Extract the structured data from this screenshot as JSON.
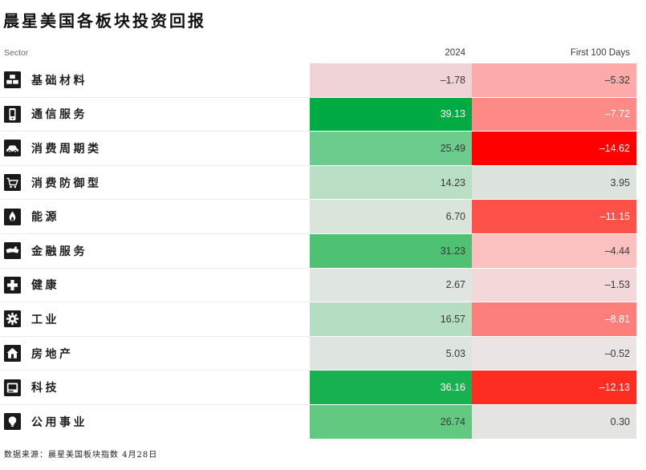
{
  "page": {
    "title": "晨星美国各板块投资回报",
    "source_note": "数据来源：晨星美国板块指数  4月28日"
  },
  "table_header": {
    "sector": "Sector",
    "col_2024": "2024",
    "col_first_100_days": "First 100 Days"
  },
  "colors": {
    "positive_strong_green": "#00ab44",
    "negative_strong_red": "#fe0000",
    "text_dark": "#3a3a3a",
    "text_light": "#ffffff",
    "row_divider": "#ededed"
  },
  "chart_data": {
    "type": "heatmap",
    "title": "晨星美国各板块投资回报",
    "columns": [
      "2024",
      "First 100 Days"
    ],
    "source": "数据来源：晨星美国板块指数  4月28日",
    "rows": [
      {
        "sector": "基础材料",
        "icon": "bricks-icon",
        "values": {
          "2024": -1.78,
          "first_100_days": -5.32
        },
        "cells": [
          {
            "display": "–1.78",
            "bg": "#f0d3d6",
            "fg": "#3a3a3a"
          },
          {
            "display": "–5.32",
            "bg": "#fcabaa",
            "fg": "#3a3a3a"
          }
        ]
      },
      {
        "sector": "通信服务",
        "icon": "mobile-phone-icon",
        "values": {
          "2024": 39.13,
          "first_100_days": -7.72
        },
        "cells": [
          {
            "display": "39.13",
            "bg": "#00ab44",
            "fg": "#ffffff"
          },
          {
            "display": "–7.72",
            "bg": "#fd8a86",
            "fg": "#ffffff"
          }
        ]
      },
      {
        "sector": "消费周期类",
        "icon": "car-icon",
        "values": {
          "2024": 25.49,
          "first_100_days": -14.62
        },
        "cells": [
          {
            "display": "25.49",
            "bg": "#6bcc8d",
            "fg": "#3a3a3a"
          },
          {
            "display": "–14.62",
            "bg": "#fe0000",
            "fg": "#ffffff"
          }
        ]
      },
      {
        "sector": "消费防御型",
        "icon": "shopping-cart-icon",
        "values": {
          "2024": 14.23,
          "first_100_days": 3.95
        },
        "cells": [
          {
            "display": "14.23",
            "bg": "#b9dfc4",
            "fg": "#3a3a3a"
          },
          {
            "display": "3.95",
            "bg": "#dde4dd",
            "fg": "#3a3a3a"
          }
        ]
      },
      {
        "sector": "能源",
        "icon": "flame-icon",
        "values": {
          "2024": 6.7,
          "first_100_days": -11.15
        },
        "cells": [
          {
            "display": "6.70",
            "bg": "#d9e4da",
            "fg": "#3a3a3a"
          },
          {
            "display": "–11.15",
            "bg": "#fd5149",
            "fg": "#ffffff"
          }
        ]
      },
      {
        "sector": "金融服务",
        "icon": "handshake-icon",
        "values": {
          "2024": 31.23,
          "first_100_days": -4.44
        },
        "cells": [
          {
            "display": "31.23",
            "bg": "#4fc173",
            "fg": "#3a3a3a"
          },
          {
            "display": "–4.44",
            "bg": "#fbc1c0",
            "fg": "#3a3a3a"
          }
        ]
      },
      {
        "sector": "健康",
        "icon": "plus-cross-icon",
        "values": {
          "2024": 2.67,
          "first_100_days": -1.53
        },
        "cells": [
          {
            "display": "2.67",
            "bg": "#dfe5e0",
            "fg": "#3a3a3a"
          },
          {
            "display": "–1.53",
            "bg": "#f4d7d9",
            "fg": "#3a3a3a"
          }
        ]
      },
      {
        "sector": "工业",
        "icon": "gear-icon",
        "values": {
          "2024": 16.57,
          "first_100_days": -8.81
        },
        "cells": [
          {
            "display": "16.57",
            "bg": "#b5ddc2",
            "fg": "#3a3a3a"
          },
          {
            "display": "–8.81",
            "bg": "#fd7f7b",
            "fg": "#ffffff"
          }
        ]
      },
      {
        "sector": "房地产",
        "icon": "house-icon",
        "values": {
          "2024": 5.03,
          "first_100_days": -0.52
        },
        "cells": [
          {
            "display": "5.03",
            "bg": "#dee4de",
            "fg": "#3a3a3a"
          },
          {
            "display": "–0.52",
            "bg": "#eae4e4",
            "fg": "#3a3a3a"
          }
        ]
      },
      {
        "sector": "科技",
        "icon": "computer-icon",
        "values": {
          "2024": 36.16,
          "first_100_days": -12.13
        },
        "cells": [
          {
            "display": "36.16",
            "bg": "#17b150",
            "fg": "#ffffff"
          },
          {
            "display": "–12.13",
            "bg": "#fd2e21",
            "fg": "#ffffff"
          }
        ]
      },
      {
        "sector": "公用事业",
        "icon": "lightbulb-icon",
        "values": {
          "2024": 26.74,
          "first_100_days": 0.3
        },
        "cells": [
          {
            "display": "26.74",
            "bg": "#62c981",
            "fg": "#3a3a3a"
          },
          {
            "display": "0.30",
            "bg": "#e4e4e2",
            "fg": "#3a3a3a"
          }
        ]
      }
    ]
  }
}
